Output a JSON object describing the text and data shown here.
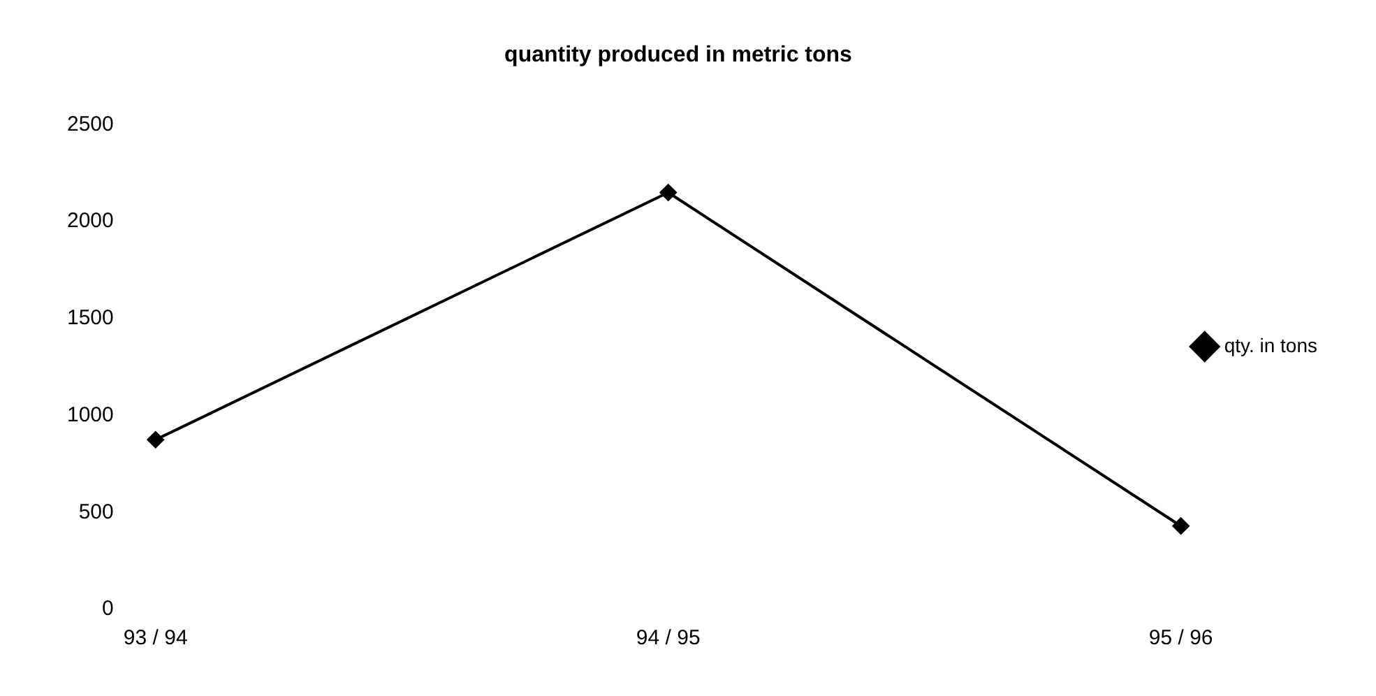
{
  "chart_data": {
    "type": "line",
    "title": "quantity produced in metric tons",
    "categories": [
      "93 / 94",
      "94 / 95",
      "95 / 96"
    ],
    "series": [
      {
        "name": "qty. in tons",
        "color": "#000000",
        "values": [
          875,
          2150,
          430
        ]
      }
    ],
    "ylim": [
      0,
      2500
    ],
    "yticks": [
      0,
      500,
      1000,
      1500,
      2000,
      2500
    ],
    "grid": false,
    "legend": "right",
    "marker": "diamond",
    "line_style": "solid"
  }
}
